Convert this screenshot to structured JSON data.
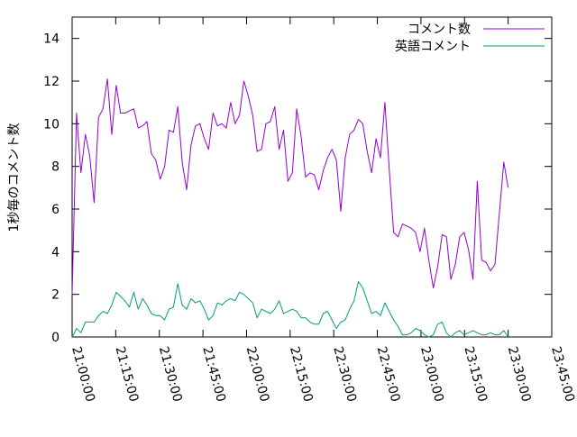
{
  "chart_data": {
    "type": "line",
    "title": "",
    "xlabel": "",
    "ylabel": "1秒毎のコメント数",
    "ylim": [
      0,
      15
    ],
    "y_ticks": [
      0,
      2,
      4,
      6,
      8,
      10,
      12,
      14
    ],
    "x_tick_labels": [
      "21:00:00",
      "21:15:00",
      "21:30:00",
      "21:45:00",
      "22:00:00",
      "22:15:00",
      "22:30:00",
      "22:45:00",
      "23:00:00",
      "23:15:00",
      "23:30:00",
      "23:45:00"
    ],
    "x_range_minutes": [
      0,
      165
    ],
    "grid": false,
    "legend_position": "top-right",
    "series": [
      {
        "name": "コメント数",
        "color": "#9400d3",
        "values": [
          2.0,
          10.5,
          7.7,
          9.5,
          8.5,
          6.3,
          10.3,
          10.7,
          12.1,
          9.5,
          11.8,
          10.5,
          10.5,
          10.6,
          10.7,
          9.8,
          9.9,
          10.1,
          8.6,
          8.3,
          7.4,
          8.0,
          9.7,
          9.6,
          10.8,
          8.2,
          6.9,
          9.0,
          9.9,
          10.0,
          9.3,
          8.8,
          10.5,
          9.9,
          10.0,
          9.8,
          11.0,
          10.0,
          10.4,
          12.0,
          11.3,
          10.4,
          8.7,
          8.8,
          10.0,
          10.1,
          10.8,
          8.8,
          9.7,
          7.3,
          7.7,
          10.7,
          9.4,
          7.5,
          7.7,
          7.6,
          6.9,
          7.8,
          8.4,
          8.8,
          8.3,
          5.9,
          8.4,
          9.5,
          9.7,
          10.2,
          10.0,
          8.7,
          7.7,
          9.3,
          8.4,
          11.0,
          7.9,
          4.9,
          4.7,
          5.3,
          5.2,
          5.1,
          4.9,
          4.0,
          5.1,
          3.6,
          2.3,
          3.3,
          4.8,
          4.7,
          2.7,
          3.4,
          4.7,
          4.9,
          4.1,
          2.7,
          7.3,
          3.6,
          3.5,
          3.1,
          3.4,
          5.8,
          8.2,
          7.0
        ]
      },
      {
        "name": "英語コメント",
        "color": "#009e73",
        "values": [
          0.0,
          0.4,
          0.2,
          0.7,
          0.7,
          0.7,
          1.0,
          1.2,
          1.1,
          1.5,
          2.1,
          1.9,
          1.7,
          1.4,
          2.1,
          1.3,
          1.8,
          1.5,
          1.1,
          1.0,
          1.0,
          0.8,
          1.3,
          1.4,
          2.5,
          1.5,
          1.3,
          1.8,
          1.6,
          1.7,
          1.3,
          0.8,
          1.0,
          1.6,
          1.5,
          1.7,
          1.8,
          1.7,
          2.1,
          2.0,
          1.8,
          1.6,
          0.9,
          1.3,
          1.2,
          1.1,
          1.3,
          1.7,
          1.1,
          1.2,
          1.3,
          1.2,
          0.9,
          0.9,
          0.7,
          0.6,
          0.6,
          1.1,
          1.2,
          0.8,
          0.4,
          0.7,
          0.8,
          1.3,
          1.7,
          2.6,
          2.3,
          1.7,
          1.1,
          1.2,
          1.0,
          1.6,
          1.2,
          0.8,
          0.5,
          0.1,
          0.1,
          0.2,
          0.4,
          0.3,
          0.1,
          0.0,
          0.1,
          0.6,
          0.7,
          0.2,
          0.0,
          0.2,
          0.3,
          0.1,
          0.2,
          0.3,
          0.2,
          0.1,
          0.1,
          0.2,
          0.1,
          0.1,
          0.3,
          0.0
        ]
      }
    ]
  }
}
